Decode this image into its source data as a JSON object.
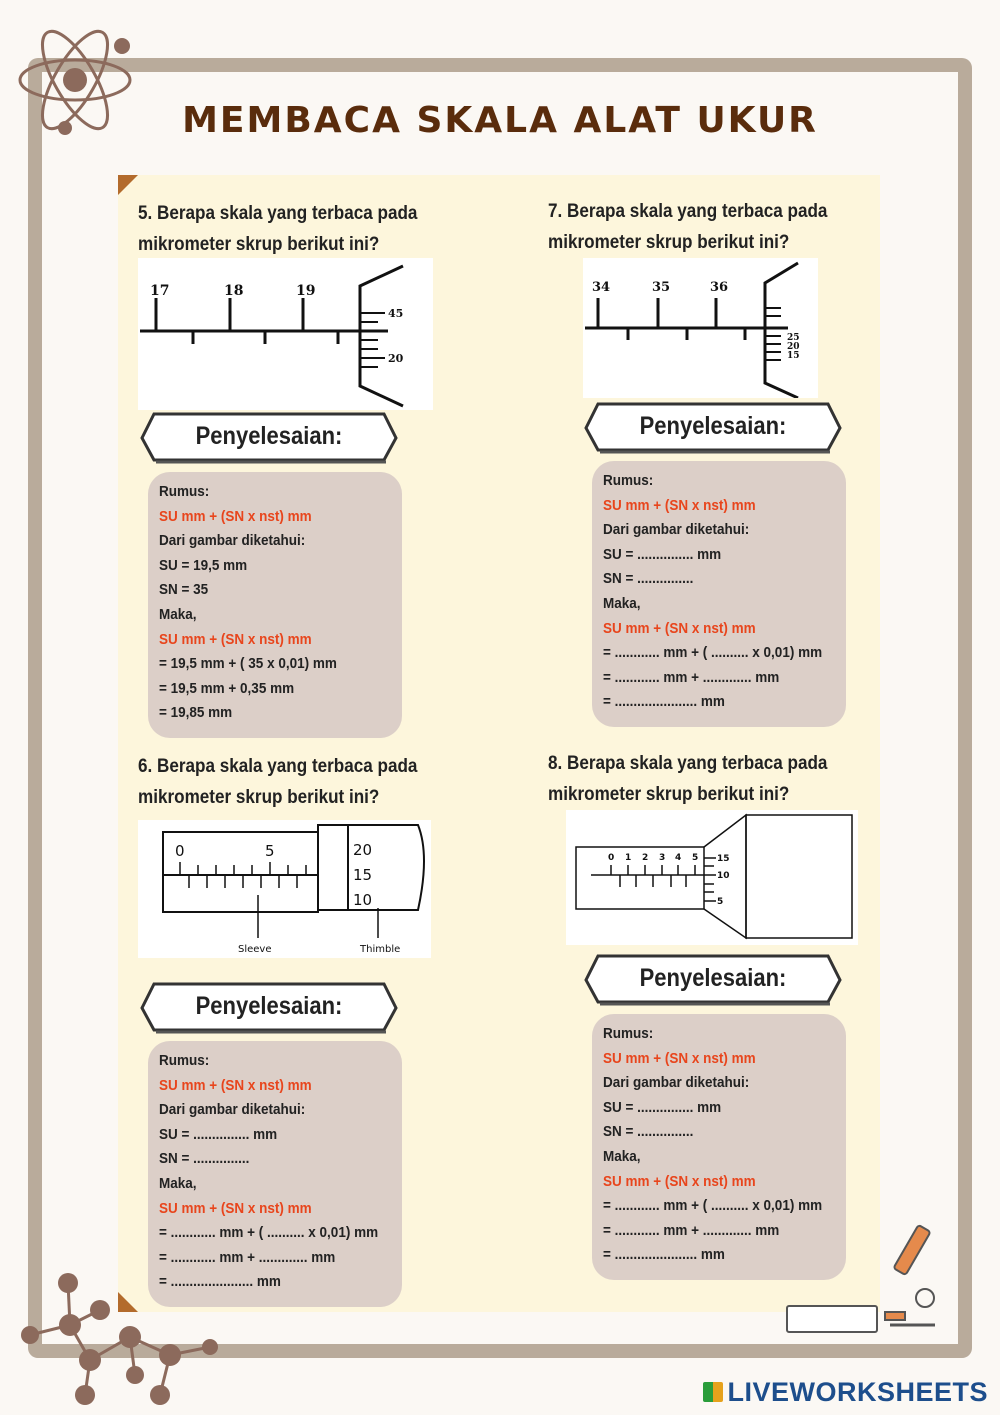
{
  "title": "MEMBACA SKALA ALAT UKUR",
  "banner": "Penyelesaian:",
  "questions": [
    {
      "q1": "5. Berapa skala yang terbaca pada",
      "q2": "mikrometer skrup berikut ini?",
      "image": {
        "main": [
          "17",
          "18",
          "19"
        ],
        "thimble": [
          "45",
          "20"
        ]
      },
      "lines": [
        "Rumus:",
        "SU mm + (SN x nst) mm",
        "Dari gambar diketahui:",
        "SU = 19,5 mm",
        "SN = 35",
        "Maka,",
        "SU mm + (SN x nst) mm",
        "= 19,5 mm + ( 35 x 0,01) mm",
        "= 19,5 mm + 0,35 mm",
        "= 19,85 mm"
      ]
    },
    {
      "q1": "7. Berapa skala yang terbaca pada",
      "q2": "mikrometer skrup berikut ini?",
      "image": {
        "main": [
          "34",
          "35",
          "36"
        ],
        "thimble": [
          "25",
          "20",
          "15"
        ]
      },
      "lines": [
        "Rumus:",
        "SU mm + (SN x nst) mm",
        "Dari gambar diketahui:",
        "SU = ............... mm",
        "SN = ...............",
        "Maka,",
        "SU mm + (SN x nst) mm",
        "= ............ mm + ( .......... x 0,01) mm",
        "= ............ mm + ............. mm",
        "= ...................... mm"
      ]
    },
    {
      "q1": "6. Berapa skala yang terbaca pada",
      "q2": "mikrometer skrup berikut ini?",
      "image": {
        "main": [
          "0",
          "5"
        ],
        "thimble": [
          "20",
          "15",
          "10"
        ],
        "sleeve": "Sleeve",
        "thimble_label": "Thimble"
      },
      "lines": [
        "Rumus:",
        "SU mm + (SN x nst) mm",
        "Dari gambar diketahui:",
        "SU = ............... mm",
        "SN = ...............",
        "Maka,",
        "SU mm + (SN x nst) mm",
        "= ............ mm + ( .......... x 0,01) mm",
        "= ............ mm + ............. mm",
        "= ...................... mm"
      ]
    },
    {
      "q1": "8. Berapa skala yang terbaca pada",
      "q2": "mikrometer skrup berikut ini?",
      "image": {
        "main": [
          "0",
          "1",
          "2",
          "3",
          "4",
          "5"
        ],
        "thimble": [
          "15",
          "10",
          "5"
        ]
      },
      "lines": [
        "Rumus:",
        "SU mm + (SN x nst) mm",
        "Dari gambar diketahui:",
        "SU = ............... mm",
        "SN = ...............",
        "Maka,",
        "SU mm + (SN x nst) mm",
        "= ............ mm + ( .......... x 0,01) mm",
        "= ............ mm + ............. mm",
        "= ...................... mm"
      ]
    }
  ],
  "red_lines": [
    1,
    6
  ],
  "colors": {
    "title": "#5a2c0c",
    "frame": "#b9ab9b",
    "panel": "#fdf6dc",
    "solution_box": "#dccfc8",
    "formula": "#e8451c"
  },
  "logo": "LIVEWORKSHEETS"
}
